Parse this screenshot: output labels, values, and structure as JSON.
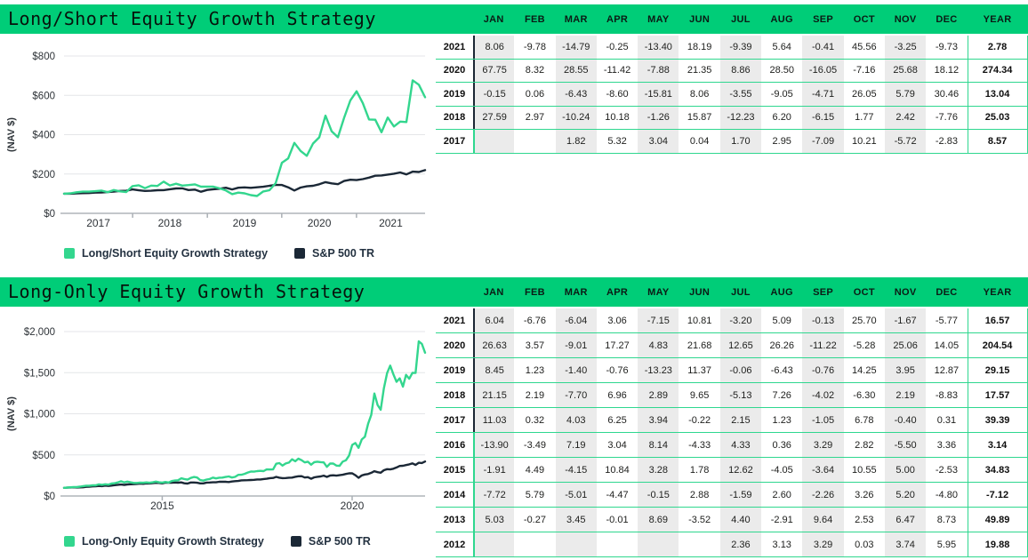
{
  "colors": {
    "accent_green": "#00cd78",
    "border_green": "#2fd78f",
    "line_green": "#33d68e",
    "navy": "#1b2836",
    "stripe_gray": "#ebebeb",
    "dark_divider": "#1c2734"
  },
  "months": [
    "JAN",
    "FEB",
    "MAR",
    "APR",
    "MAY",
    "JUN",
    "JUL",
    "AUG",
    "SEP",
    "OCT",
    "NOV",
    "DEC"
  ],
  "year_header": "YEAR",
  "sections": [
    {
      "title": "Long/Short Equity Growth Strategy",
      "table": {
        "rows": [
          {
            "year": "2021",
            "values": [
              "8.06",
              "-9.78",
              "-14.79",
              "-0.25",
              "-13.40",
              "18.19",
              "-9.39",
              "5.64",
              "-0.41",
              "45.56",
              "-3.25",
              "-9.73"
            ],
            "total": "2.78"
          },
          {
            "year": "2020",
            "values": [
              "67.75",
              "8.32",
              "28.55",
              "-11.42",
              "-7.88",
              "21.35",
              "8.86",
              "28.50",
              "-16.05",
              "-7.16",
              "25.68",
              "18.12"
            ],
            "total": "274.34"
          },
          {
            "year": "2019",
            "values": [
              "-0.15",
              "0.06",
              "-6.43",
              "-8.60",
              "-15.81",
              "8.06",
              "-3.55",
              "-9.05",
              "-4.71",
              "26.05",
              "5.79",
              "30.46"
            ],
            "total": "13.04"
          },
          {
            "year": "2018",
            "values": [
              "27.59",
              "2.97",
              "-10.24",
              "10.18",
              "-1.26",
              "15.87",
              "-12.23",
              "6.20",
              "-6.15",
              "1.77",
              "2.42",
              "-7.76"
            ],
            "total": "25.03"
          },
          {
            "year": "2017",
            "values": [
              "",
              "",
              "1.82",
              "5.32",
              "3.04",
              "0.04",
              "1.70",
              "2.95",
              "-7.09",
              "10.21",
              "-5.72",
              "-2.83"
            ],
            "total": "8.57"
          }
        ]
      }
    },
    {
      "title": "Long-Only Equity Growth Strategy",
      "table": {
        "rows": [
          {
            "year": "2021",
            "values": [
              "6.04",
              "-6.76",
              "-6.04",
              "3.06",
              "-7.15",
              "10.81",
              "-3.20",
              "5.09",
              "-0.13",
              "25.70",
              "-1.67",
              "-5.77"
            ],
            "total": "16.57"
          },
          {
            "year": "2020",
            "values": [
              "26.63",
              "3.57",
              "-9.01",
              "17.27",
              "4.83",
              "21.68",
              "12.65",
              "26.26",
              "-11.22",
              "-5.28",
              "25.06",
              "14.05"
            ],
            "total": "204.54"
          },
          {
            "year": "2019",
            "values": [
              "8.45",
              "1.23",
              "-1.40",
              "-0.76",
              "-13.23",
              "11.37",
              "-0.06",
              "-6.43",
              "-0.76",
              "14.25",
              "3.95",
              "12.87"
            ],
            "total": "29.15"
          },
          {
            "year": "2018",
            "values": [
              "21.15",
              "2.19",
              "-7.70",
              "6.96",
              "2.89",
              "9.65",
              "-5.13",
              "7.26",
              "-4.02",
              "-6.30",
              "2.19",
              "-8.83"
            ],
            "total": "17.57"
          },
          {
            "year": "2017",
            "values": [
              "11.03",
              "0.32",
              "4.03",
              "6.25",
              "3.94",
              "-0.22",
              "2.15",
              "1.23",
              "-1.05",
              "6.78",
              "-0.40",
              "0.31"
            ],
            "total": "39.39"
          },
          {
            "year": "2016",
            "values": [
              "-13.90",
              "-3.49",
              "7.19",
              "3.04",
              "8.14",
              "-4.33",
              "4.33",
              "0.36",
              "3.29",
              "2.82",
              "-5.50",
              "3.36"
            ],
            "total": "3.14"
          },
          {
            "year": "2015",
            "values": [
              "-1.91",
              "4.49",
              "-4.15",
              "10.84",
              "3.28",
              "1.78",
              "12.62",
              "-4.05",
              "-3.64",
              "10.55",
              "5.00",
              "-2.53"
            ],
            "total": "34.83"
          },
          {
            "year": "2014",
            "values": [
              "-7.72",
              "5.79",
              "-5.01",
              "-4.47",
              "-0.15",
              "2.88",
              "-1.59",
              "2.60",
              "-2.26",
              "3.26",
              "5.20",
              "-4.80"
            ],
            "total": "-7.12"
          },
          {
            "year": "2013",
            "values": [
              "5.03",
              "-0.27",
              "3.45",
              "-0.01",
              "8.69",
              "-3.52",
              "4.40",
              "-2.91",
              "9.64",
              "2.53",
              "6.47",
              "8.73"
            ],
            "total": "49.89"
          },
          {
            "year": "2012",
            "values": [
              "",
              "",
              "",
              "",
              "",
              "",
              "2.36",
              "3.13",
              "3.29",
              "0.03",
              "3.74",
              "5.95"
            ],
            "total": "19.88"
          }
        ]
      }
    }
  ],
  "chart_data": [
    {
      "type": "line",
      "title": "Long/Short Equity Growth Strategy",
      "ylabel": "(NAV $)",
      "ylim": [
        0,
        800
      ],
      "grid": true,
      "legend_position": "bottom",
      "y_ticks": [
        {
          "v": 0,
          "label": "$0"
        },
        {
          "v": 200,
          "label": "$200"
        },
        {
          "v": 400,
          "label": "$400"
        },
        {
          "v": 600,
          "label": "$600"
        },
        {
          "v": 800,
          "label": "$800"
        }
      ],
      "x_tick_marks": [
        0.19,
        0.397,
        0.603,
        0.81
      ],
      "x_labels": [
        {
          "pos": 0.095,
          "label": "2017"
        },
        {
          "pos": 0.293,
          "label": "2018"
        },
        {
          "pos": 0.5,
          "label": "2019"
        },
        {
          "pos": 0.707,
          "label": "2020"
        },
        {
          "pos": 0.905,
          "label": "2021"
        }
      ],
      "x_range": "Feb 2017 - Dec 2021 (monthly NAV, start = $100)",
      "series": [
        {
          "name": "Long/Short Equity Growth Strategy",
          "color": "#33d68e",
          "values": [
            100,
            101.8,
            107.2,
            110.5,
            110.5,
            112.4,
            115.7,
            107.5,
            118.5,
            111.7,
            108.6,
            138.5,
            142.6,
            128,
            141.1,
            139.3,
            161.4,
            141.7,
            150.4,
            141.2,
            143.7,
            147.2,
            135.7,
            135.5,
            135.6,
            126.9,
            116,
            97.7,
            105.5,
            101.8,
            92.6,
            88.2,
            111.2,
            117.6,
            153.5,
            257.4,
            278.8,
            358.4,
            317.5,
            292.5,
            354.9,
            386.4,
            496.5,
            416.8,
            387,
            486.3,
            574.4,
            620.7,
            560,
            477.2,
            476,
            412.2,
            487.2,
            441.4,
            466.3,
            464.4,
            676,
            654.1,
            590.4
          ]
        },
        {
          "name": "S&P 500 TR",
          "color": "#1b2836",
          "values": [
            100,
            100.1,
            101.1,
            102.5,
            103.1,
            105.3,
            105.6,
            107.8,
            110.3,
            113.7,
            115,
            121.5,
            117,
            114.1,
            114.6,
            117.3,
            118,
            122.4,
            126.4,
            127.2,
            118.5,
            120.9,
            110,
            118.8,
            122.6,
            125,
            130,
            121.7,
            130.2,
            132,
            129.9,
            132.4,
            135.3,
            140.2,
            144.4,
            144.4,
            132.5,
            116.1,
            131,
            137.3,
            140,
            147.9,
            158.5,
            152.5,
            148.4,
            164.6,
            170.9,
            169.2,
            173.9,
            181.6,
            191.2,
            192.5,
            196.9,
            201.6,
            207.7,
            197.9,
            211.8,
            210.3,
            219.8
          ]
        }
      ]
    },
    {
      "type": "line",
      "title": "Long-Only Equity Growth Strategy",
      "ylabel": "(NAV $)",
      "ylim": [
        0,
        2000
      ],
      "grid": true,
      "legend_position": "bottom",
      "y_ticks": [
        {
          "v": 0,
          "label": "$0"
        },
        {
          "v": 500,
          "label": "$500"
        },
        {
          "v": 1000,
          "label": "$1,000"
        },
        {
          "v": 1500,
          "label": "$1,500"
        },
        {
          "v": 2000,
          "label": "$2,000"
        }
      ],
      "x_tick_marks": [
        0.272,
        0.798
      ],
      "x_labels": [
        {
          "pos": 0.272,
          "label": "2015"
        },
        {
          "pos": 0.798,
          "label": "2020"
        }
      ],
      "x_range": "Jun 2012 - Dec 2021 (monthly NAV, start = $100)",
      "series": [
        {
          "name": "Long-Only Equity Growth Strategy",
          "color": "#33d68e",
          "values": [
            100,
            102.4,
            105.6,
            109,
            109.1,
            113.2,
            119.9,
            125.9,
            125.6,
            129.9,
            129.9,
            141.2,
            136.2,
            142.2,
            138.1,
            151.4,
            155.2,
            165.2,
            179.7,
            165.8,
            175.4,
            166.6,
            159.2,
            158.9,
            163.5,
            160.9,
            165.1,
            161.4,
            166.6,
            175.3,
            166.9,
            163.7,
            171,
            163.9,
            181.7,
            187.7,
            191,
            215.1,
            206.4,
            198.9,
            219.9,
            230.9,
            225,
            193.8,
            187,
            200.4,
            206.5,
            223.3,
            213.7,
            222.9,
            223.7,
            231.1,
            237.6,
            224.5,
            232.1,
            257.7,
            258.5,
            268.9,
            285.7,
            297,
            296.3,
            302.7,
            306.4,
            303.2,
            323.7,
            322.5,
            323.5,
            391.9,
            400.4,
            369.6,
            395.3,
            406.8,
            446,
            423.1,
            453.9,
            435.6,
            408.2,
            417.1,
            380.3,
            412.4,
            417.5,
            411.6,
            408.5,
            354.5,
            394.8,
            394.5,
            369.2,
            366.4,
            418.6,
            435.1,
            491.1,
            621.9,
            644.1,
            586,
            687.2,
            720.4,
            876.6,
            987.5,
            1246.8,
            1106.9,
            1048.5,
            1311.2,
            1495.5,
            1585.8,
            1478.6,
            1389.3,
            1431.8,
            1329.4,
            1473.1,
            1426,
            1498.6,
            1496.6,
            1881.3,
            1849.8,
            1743.1
          ]
        },
        {
          "name": "S&P 500 TR",
          "color": "#1b2836",
          "values": [
            100,
            102,
            104,
            106,
            104,
            105,
            106,
            111,
            113,
            117,
            119,
            122,
            120,
            126,
            122,
            126,
            132,
            136,
            140,
            135,
            141,
            143,
            144,
            147,
            150,
            148,
            154,
            152,
            156,
            160,
            159,
            154,
            163,
            161,
            162,
            164,
            162,
            165,
            155,
            151,
            164,
            164,
            161,
            153,
            153,
            163,
            164,
            167,
            167,
            173,
            173,
            173,
            170,
            176,
            180,
            183,
            190,
            191,
            192,
            195,
            197,
            201,
            201,
            206,
            210,
            217,
            219,
            232,
            223,
            217,
            218,
            223,
            224,
            233,
            240,
            241,
            225,
            229,
            210,
            227,
            234,
            238,
            248,
            232,
            249,
            252,
            248,
            253,
            258,
            268,
            276,
            276,
            253,
            222,
            250,
            262,
            267,
            282,
            302,
            290,
            283,
            314,
            327,
            323,
            332,
            347,
            365,
            368,
            376,
            385,
            397,
            378,
            404,
            401,
            420
          ]
        }
      ]
    }
  ]
}
